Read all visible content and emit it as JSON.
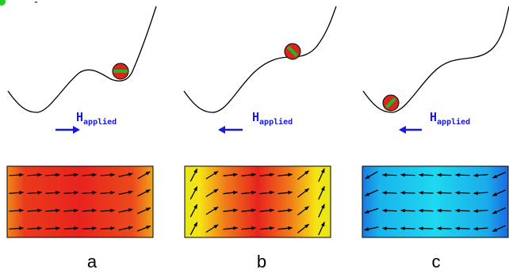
{
  "field_label_main": "H",
  "field_label_sub": "applied",
  "panels": [
    {
      "label": "a",
      "field_direction": "right",
      "ball_side": "right-well",
      "magnetization": "red"
    },
    {
      "label": "b",
      "field_direction": "left",
      "ball_side": "barrier-top",
      "magnetization": "red"
    },
    {
      "label": "c",
      "field_direction": "left",
      "ball_side": "left-well",
      "magnetization": "cyan"
    }
  ],
  "colors": {
    "field_arrow": "#1a1adc",
    "red_state": "#e8231e",
    "yellow_edge": "#f6e414",
    "cyan_state": "#1ed8f0",
    "blue_edge": "#1a78e0",
    "ball_fill": "#d4281c",
    "ball_stripe": "#28b428",
    "corner_dot": "#22cc22"
  }
}
